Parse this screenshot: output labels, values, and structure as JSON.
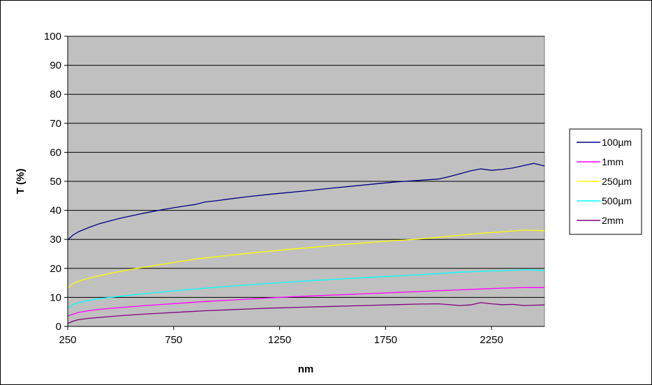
{
  "chart_data": {
    "type": "line",
    "title": "",
    "xlabel": "nm",
    "ylabel": "T (%)",
    "xlim": [
      250,
      2500
    ],
    "ylim": [
      0,
      100
    ],
    "x_ticks": [
      250,
      750,
      1250,
      1750,
      2250
    ],
    "y_ticks": [
      0,
      10,
      20,
      30,
      40,
      50,
      60,
      70,
      80,
      90,
      100
    ],
    "grid": "horizontal",
    "legend_position": "right",
    "plot_background": "#c0c0c0",
    "series": [
      {
        "name": "100µm",
        "color": "#000080",
        "x": [
          250,
          275,
          300,
          350,
          400,
          450,
          500,
          550,
          600,
          650,
          700,
          750,
          800,
          850,
          900,
          950,
          1000,
          1100,
          1200,
          1300,
          1400,
          1500,
          1600,
          1700,
          1800,
          1900,
          2000,
          2050,
          2100,
          2150,
          2200,
          2250,
          2300,
          2350,
          2400,
          2450,
          2500
        ],
        "values": [
          29.8,
          31.5,
          32.6,
          34.1,
          35.4,
          36.4,
          37.3,
          38.1,
          38.9,
          39.6,
          40.3,
          40.9,
          41.5,
          42.0,
          42.9,
          43.3,
          43.8,
          44.7,
          45.5,
          46.2,
          46.9,
          47.7,
          48.4,
          49.1,
          49.8,
          50.3,
          50.8,
          51.6,
          52.6,
          53.6,
          54.3,
          53.8,
          54.1,
          54.6,
          55.4,
          56.2,
          55.3
        ]
      },
      {
        "name": "1mm",
        "color": "#ff00ff",
        "x": [
          250,
          300,
          350,
          400,
          500,
          600,
          700,
          800,
          900,
          1000,
          1100,
          1200,
          1300,
          1400,
          1500,
          1600,
          1700,
          1800,
          1900,
          2000,
          2100,
          2200,
          2300,
          2400,
          2500
        ],
        "values": [
          3.6,
          4.8,
          5.4,
          5.9,
          6.5,
          7.1,
          7.6,
          8.1,
          8.6,
          9.0,
          9.4,
          9.8,
          10.2,
          10.5,
          10.8,
          11.1,
          11.4,
          11.7,
          12.0,
          12.3,
          12.6,
          12.9,
          13.2,
          13.4,
          13.4
        ]
      },
      {
        "name": "250µm",
        "color": "#ffff00",
        "x": [
          250,
          275,
          300,
          350,
          400,
          450,
          500,
          550,
          600,
          650,
          700,
          750,
          800,
          850,
          900,
          1000,
          1100,
          1200,
          1300,
          1400,
          1500,
          1600,
          1700,
          1800,
          1900,
          2000,
          2100,
          2200,
          2300,
          2400,
          2500
        ],
        "values": [
          13.2,
          14.8,
          15.6,
          16.6,
          17.5,
          18.3,
          19.0,
          19.7,
          20.3,
          20.9,
          21.5,
          22.1,
          22.6,
          23.2,
          23.6,
          24.4,
          25.2,
          25.9,
          26.6,
          27.2,
          27.9,
          28.5,
          29.1,
          29.6,
          30.1,
          30.7,
          31.4,
          32.1,
          32.6,
          33.2,
          33.0
        ]
      },
      {
        "name": "500µm",
        "color": "#00ffff",
        "x": [
          250,
          275,
          300,
          350,
          400,
          500,
          600,
          700,
          800,
          900,
          1000,
          1100,
          1200,
          1300,
          1400,
          1500,
          1600,
          1700,
          1800,
          1900,
          2000,
          2100,
          2200,
          2300,
          2400,
          2500
        ],
        "values": [
          6.2,
          7.6,
          8.2,
          9.0,
          9.6,
          10.4,
          11.2,
          11.9,
          12.6,
          13.2,
          13.8,
          14.3,
          14.8,
          15.3,
          15.8,
          16.2,
          16.6,
          17.0,
          17.4,
          17.8,
          18.2,
          18.7,
          19.0,
          19.2,
          19.5,
          19.3
        ]
      },
      {
        "name": "2mm",
        "color": "#800080",
        "x": [
          250,
          275,
          300,
          350,
          400,
          500,
          600,
          700,
          800,
          900,
          1000,
          1100,
          1200,
          1300,
          1400,
          1500,
          1600,
          1700,
          1800,
          1900,
          2000,
          2100,
          2150,
          2200,
          2250,
          2300,
          2350,
          2400,
          2450,
          2500
        ],
        "values": [
          1.0,
          1.8,
          2.3,
          2.8,
          3.1,
          3.7,
          4.2,
          4.6,
          5.0,
          5.4,
          5.7,
          6.0,
          6.3,
          6.5,
          6.7,
          6.9,
          7.1,
          7.3,
          7.5,
          7.7,
          7.8,
          7.2,
          7.4,
          8.2,
          7.8,
          7.5,
          7.6,
          7.2,
          7.3,
          7.4
        ]
      }
    ]
  }
}
